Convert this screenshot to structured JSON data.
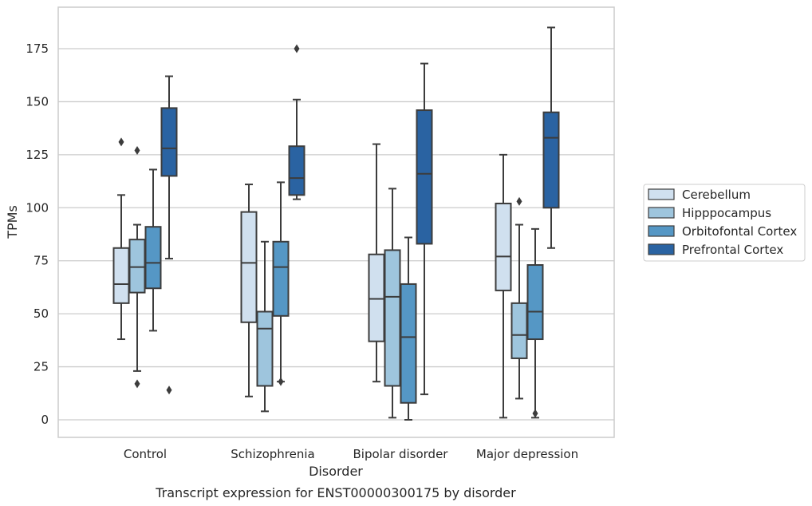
{
  "chart_data": {
    "type": "box",
    "title": "",
    "caption": "Transcript expression for ENST00000300175 by disorder",
    "xlabel": "Disorder",
    "ylabel": "TPMs",
    "ylim": [
      -8,
      195
    ],
    "yticks": [
      0,
      25,
      50,
      75,
      100,
      125,
      150,
      175
    ],
    "grid": "horizontal",
    "legend_position": "right",
    "categories": [
      "Control",
      "Schizophrenia",
      "Bipolar disorder",
      "Major depression"
    ],
    "series": [
      {
        "name": "Cerebellum",
        "color": "#d0e0ef",
        "boxes": [
          {
            "whislo": 38,
            "q1": 55,
            "med": 64,
            "q3": 81,
            "whishi": 106,
            "fliers": [
              131
            ]
          },
          {
            "whislo": 11,
            "q1": 46,
            "med": 74,
            "q3": 98,
            "whishi": 111,
            "fliers": []
          },
          {
            "whislo": 18,
            "q1": 37,
            "med": 57,
            "q3": 78,
            "whishi": 130,
            "fliers": []
          },
          {
            "whislo": 1,
            "q1": 61,
            "med": 77,
            "q3": 102,
            "whishi": 125,
            "fliers": []
          }
        ]
      },
      {
        "name": "Hipppocampus",
        "color": "#9ec5dd",
        "boxes": [
          {
            "whislo": 23,
            "q1": 60,
            "med": 72,
            "q3": 85,
            "whishi": 92,
            "fliers": [
              17,
              127
            ]
          },
          {
            "whislo": 4,
            "q1": 16,
            "med": 43,
            "q3": 51,
            "whishi": 84,
            "fliers": []
          },
          {
            "whislo": 1,
            "q1": 16,
            "med": 58,
            "q3": 80,
            "whishi": 109,
            "fliers": []
          },
          {
            "whislo": 10,
            "q1": 29,
            "med": 40,
            "q3": 55,
            "whishi": 92,
            "fliers": [
              103
            ]
          }
        ]
      },
      {
        "name": "Orbitofontal Cortex",
        "color": "#5597c5",
        "boxes": [
          {
            "whislo": 42,
            "q1": 62,
            "med": 74,
            "q3": 91,
            "whishi": 118,
            "fliers": []
          },
          {
            "whislo": 18,
            "q1": 49,
            "med": 72,
            "q3": 84,
            "whishi": 112,
            "fliers": [
              18
            ]
          },
          {
            "whislo": 0,
            "q1": 8,
            "med": 39,
            "q3": 64,
            "whishi": 86,
            "fliers": []
          },
          {
            "whislo": 1,
            "q1": 38,
            "med": 51,
            "q3": 73,
            "whishi": 90,
            "fliers": [
              3
            ]
          }
        ]
      },
      {
        "name": "Prefrontal Cortex",
        "color": "#2a63a2",
        "boxes": [
          {
            "whislo": 76,
            "q1": 115,
            "med": 128,
            "q3": 147,
            "whishi": 162,
            "fliers": [
              14
            ]
          },
          {
            "whislo": 104,
            "q1": 106,
            "med": 114,
            "q3": 129,
            "whishi": 151,
            "fliers": [
              175
            ]
          },
          {
            "whislo": 12,
            "q1": 83,
            "med": 116,
            "q3": 146,
            "whishi": 168,
            "fliers": []
          },
          {
            "whislo": 81,
            "q1": 100,
            "med": 133,
            "q3": 145,
            "whishi": 185,
            "fliers": []
          }
        ]
      }
    ]
  }
}
